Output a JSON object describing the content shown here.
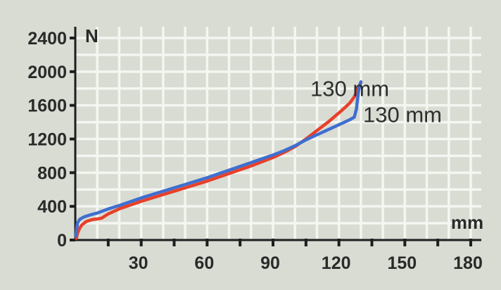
{
  "chart_data": {
    "type": "line",
    "xlabel": "mm",
    "ylabel": "N",
    "xlim": [
      0,
      180
    ],
    "ylim": [
      0,
      2400
    ],
    "x_ticks": [
      30,
      60,
      90,
      120,
      150,
      180
    ],
    "y_ticks": [
      0,
      400,
      800,
      1200,
      1600,
      2000,
      2400
    ],
    "grid": true,
    "series": [
      {
        "color": "#e8402a",
        "x": [
          0.5,
          1,
          2,
          3,
          5,
          8,
          10,
          12,
          15,
          20,
          30,
          40,
          50,
          60,
          70,
          80,
          90,
          95,
          100,
          105,
          110,
          115,
          120,
          123,
          125,
          127,
          128,
          129,
          130
        ],
        "y": [
          20,
          80,
          140,
          180,
          220,
          245,
          250,
          260,
          310,
          370,
          460,
          540,
          620,
          700,
          790,
          880,
          980,
          1040,
          1110,
          1200,
          1300,
          1400,
          1510,
          1580,
          1630,
          1700,
          1760,
          1820,
          1870
        ]
      },
      {
        "color": "#3f6ed0",
        "x": [
          0.3,
          0.6,
          1,
          2,
          4,
          7,
          10,
          15,
          20,
          30,
          40,
          50,
          60,
          70,
          80,
          90,
          95,
          100,
          105,
          110,
          115,
          120,
          125,
          127,
          128,
          128.5,
          129,
          129.5,
          130
        ],
        "y": [
          50,
          130,
          200,
          245,
          275,
          300,
          320,
          370,
          410,
          500,
          580,
          660,
          740,
          830,
          920,
          1010,
          1060,
          1120,
          1190,
          1250,
          1310,
          1370,
          1430,
          1460,
          1560,
          1680,
          1780,
          1840,
          1880
        ]
      }
    ],
    "annotations": [
      {
        "text": "130 mm",
        "x": 107,
        "y": 1810
      },
      {
        "text": "130 mm",
        "x": 131,
        "y": 1500
      }
    ]
  }
}
